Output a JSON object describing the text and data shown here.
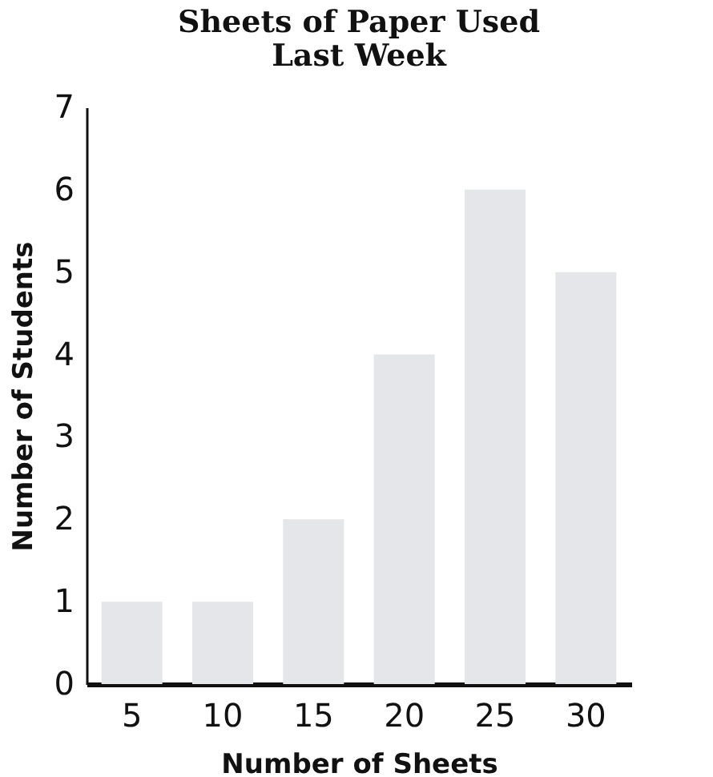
{
  "chart_data": {
    "type": "bar",
    "title": [
      "Sheets of Paper Used",
      "Last Week"
    ],
    "xlabel": "Number of Sheets",
    "ylabel": "Number of Students",
    "categories": [
      "5",
      "10",
      "15",
      "20",
      "25",
      "30"
    ],
    "values": [
      1,
      1,
      2,
      4,
      6,
      5
    ],
    "color": "#e4e6ea",
    "ylim": [
      0,
      7
    ],
    "yticks": [
      0,
      1,
      2,
      3,
      4,
      5,
      6,
      7
    ],
    "grid": false
  }
}
